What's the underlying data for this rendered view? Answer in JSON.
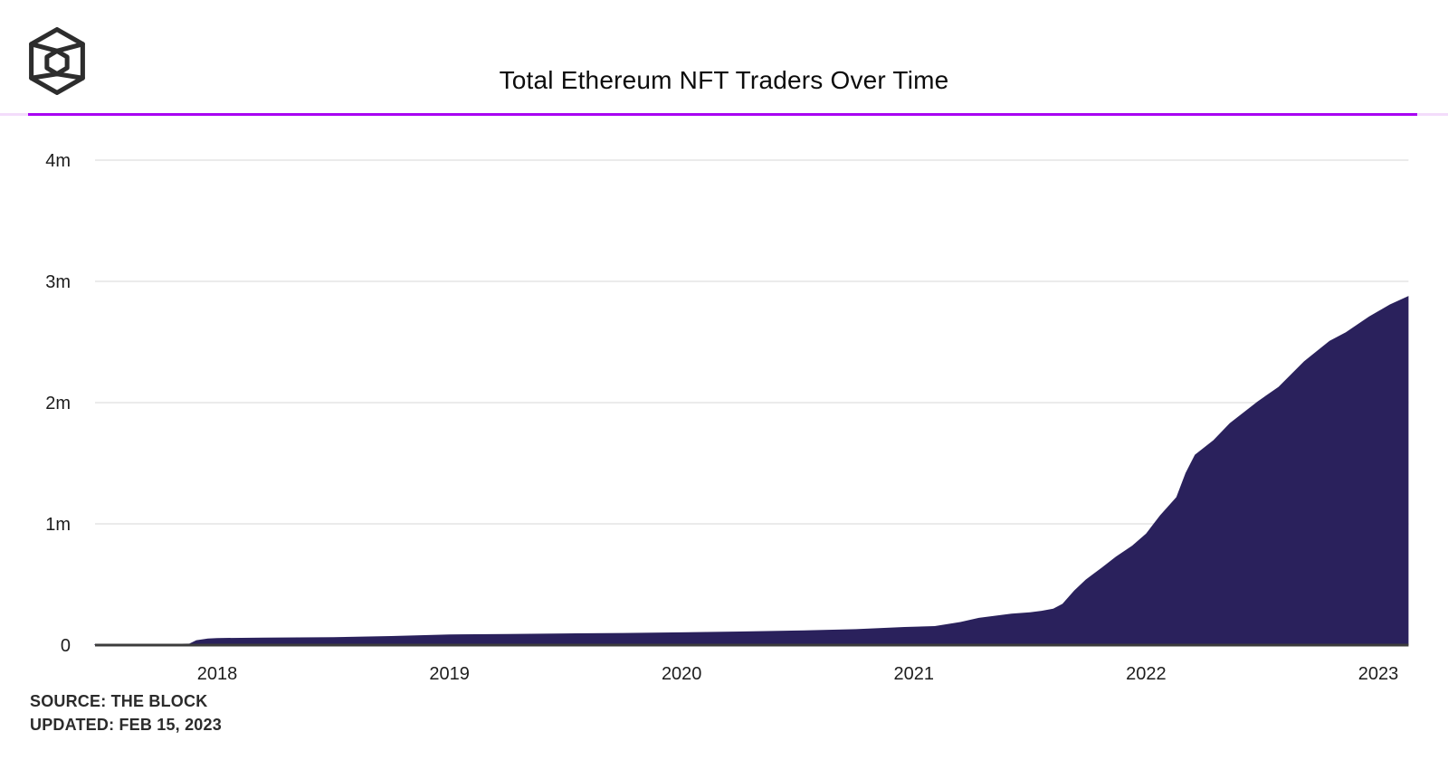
{
  "header": {
    "title": "Total Ethereum NFT Traders Over Time",
    "brand": "The Block",
    "accent_color": "#a802f2",
    "accent_fade_color": "#f3dcfb"
  },
  "chart_data": {
    "type": "area",
    "title": "Total Ethereum NFT Traders Over Time",
    "xlabel": "",
    "ylabel": "",
    "unit": "traders (millions)",
    "xlim": [
      2017.47,
      2023.13
    ],
    "ylim": [
      0,
      4.4
    ],
    "grid": "horizontal-light",
    "legend": "none",
    "x_tick_labels": [
      "2018",
      "2019",
      "2020",
      "2021",
      "2022",
      "2023"
    ],
    "x_tick_years": [
      2018,
      2019,
      2020,
      2021,
      2022,
      2023
    ],
    "y_tick_labels": [
      "0",
      "1m",
      "2m",
      "3m",
      "4m"
    ],
    "y_tick_values": [
      0,
      1,
      2,
      3,
      4
    ],
    "area_color": "#2a215c",
    "axis_line_color": "#3c3c3c",
    "gridline_color": "#ebebeb",
    "tick_label_color": "#1d1d1d",
    "series": [
      {
        "name": "Total Ethereum NFT Traders",
        "points": [
          [
            2017.47,
            0.004
          ],
          [
            2017.62,
            0.006
          ],
          [
            2017.78,
            0.009
          ],
          [
            2017.88,
            0.012
          ],
          [
            2017.91,
            0.04
          ],
          [
            2017.96,
            0.054
          ],
          [
            2018.0,
            0.058
          ],
          [
            2018.2,
            0.062
          ],
          [
            2018.5,
            0.066
          ],
          [
            2018.75,
            0.075
          ],
          [
            2019.0,
            0.088
          ],
          [
            2019.25,
            0.092
          ],
          [
            2019.5,
            0.096
          ],
          [
            2019.75,
            0.1
          ],
          [
            2020.0,
            0.105
          ],
          [
            2020.25,
            0.112
          ],
          [
            2020.5,
            0.12
          ],
          [
            2020.75,
            0.131
          ],
          [
            2020.96,
            0.149
          ],
          [
            2021.09,
            0.157
          ],
          [
            2021.2,
            0.19
          ],
          [
            2021.28,
            0.225
          ],
          [
            2021.42,
            0.26
          ],
          [
            2021.5,
            0.27
          ],
          [
            2021.55,
            0.283
          ],
          [
            2021.6,
            0.3
          ],
          [
            2021.64,
            0.34
          ],
          [
            2021.69,
            0.45
          ],
          [
            2021.74,
            0.54
          ],
          [
            2021.81,
            0.64
          ],
          [
            2021.87,
            0.73
          ],
          [
            2021.94,
            0.82
          ],
          [
            2022.0,
            0.92
          ],
          [
            2022.06,
            1.07
          ],
          [
            2022.13,
            1.22
          ],
          [
            2022.17,
            1.42
          ],
          [
            2022.21,
            1.57
          ],
          [
            2022.29,
            1.69
          ],
          [
            2022.36,
            1.83
          ],
          [
            2022.48,
            2.01
          ],
          [
            2022.57,
            2.13
          ],
          [
            2022.68,
            2.34
          ],
          [
            2022.79,
            2.51
          ],
          [
            2022.86,
            2.58
          ],
          [
            2022.96,
            2.71
          ],
          [
            2023.05,
            2.81
          ],
          [
            2023.13,
            2.88
          ]
        ]
      }
    ]
  },
  "footer": {
    "source": "SOURCE: THE BLOCK",
    "updated": "UPDATED: FEB 15, 2023"
  }
}
